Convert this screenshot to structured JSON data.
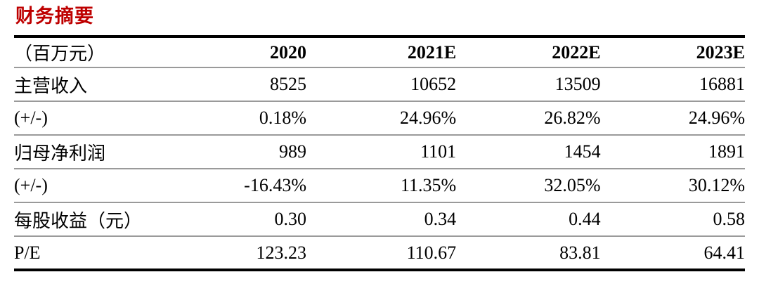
{
  "title": "财务摘要",
  "table": {
    "unit_header": "（百万元）",
    "columns": [
      "2020",
      "2021E",
      "2022E",
      "2023E"
    ],
    "rows": [
      {
        "label": "主营收入",
        "values": [
          "8525",
          "10652",
          "13509",
          "16881"
        ]
      },
      {
        "label": "(+/-)",
        "values": [
          "0.18%",
          "24.96%",
          "26.82%",
          "24.96%"
        ]
      },
      {
        "label": "归母净利润",
        "values": [
          "989",
          "1101",
          "1454",
          "1891"
        ]
      },
      {
        "label": "(+/-)",
        "values": [
          "-16.43%",
          "11.35%",
          "32.05%",
          "30.12%"
        ]
      },
      {
        "label": "每股收益（元）",
        "values": [
          "0.30",
          "0.34",
          "0.44",
          "0.58"
        ]
      },
      {
        "label": "P/E",
        "values": [
          "123.23",
          "110.67",
          "83.81",
          "64.41"
        ]
      }
    ]
  },
  "colors": {
    "title": "#be0000",
    "border_heavy": "#000000",
    "border_light": "#9a9a9a"
  }
}
